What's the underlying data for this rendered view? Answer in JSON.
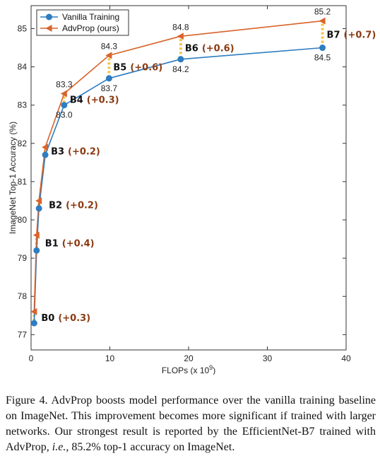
{
  "chart_data": {
    "type": "line",
    "xlabel": "FLOPs (x 10",
    "xlabel_sup": "9",
    "xlabel_end": ")",
    "ylabel": "ImageNet Top-1 Accuracy (%)",
    "xlim": [
      0,
      40
    ],
    "ylim": [
      76.6,
      85.6
    ],
    "x_ticks": [
      0,
      10,
      20,
      30,
      40
    ],
    "x_tick_labels": [
      "0",
      "10",
      "20",
      "30",
      "40"
    ],
    "y_ticks": [
      77,
      78,
      79,
      80,
      81,
      82,
      83,
      84,
      85
    ],
    "y_tick_labels": [
      "77",
      "78",
      "79",
      "80",
      "81",
      "82",
      "83",
      "84",
      "85"
    ],
    "grid": false,
    "legend_position": "top-left",
    "colors": {
      "vanilla": "#2e7dc1",
      "advprop": "#d9632a",
      "gap": "#f5c242",
      "gain_text": "#8b3a12",
      "b_text": "#111111"
    },
    "x": [
      0.39,
      0.7,
      1.0,
      1.8,
      4.2,
      9.9,
      19.0,
      37.0
    ],
    "series": [
      {
        "name": "Vanilla Training",
        "values": [
          77.3,
          79.2,
          80.3,
          81.7,
          83.0,
          83.7,
          84.2,
          84.5
        ]
      },
      {
        "name": "AdvProp (ours)",
        "values": [
          77.6,
          79.6,
          80.5,
          81.9,
          83.3,
          84.3,
          84.8,
          85.2
        ]
      }
    ],
    "point_labels": {
      "vanilla": [
        "",
        "",
        "",
        "",
        "83.0",
        "83.7",
        "84.2",
        "84.5"
      ],
      "advprop": [
        "",
        "",
        "",
        "",
        "83.3",
        "84.3",
        "84.8",
        "85.2"
      ]
    },
    "model_names": [
      "B0",
      "B1",
      "B2",
      "B3",
      "B4",
      "B5",
      "B6",
      "B7"
    ],
    "gains": [
      "(+0.3)",
      "(+0.4)",
      "(+0.2)",
      "(+0.2)",
      "(+0.3)",
      "(+0.6)",
      "(+0.6)",
      "(+0.7)"
    ]
  },
  "caption": {
    "lead": "Figure 4. AdvProp boosts model performance over the vanilla training baseline on ImageNet. This improvement becomes more significant if trained with larger networks. Our strongest result is reported by the EfficientNet-B7 trained with AdvProp, ",
    "ie": "i.e.",
    "tail": ", 85.2% top-1 accuracy on ImageNet."
  }
}
